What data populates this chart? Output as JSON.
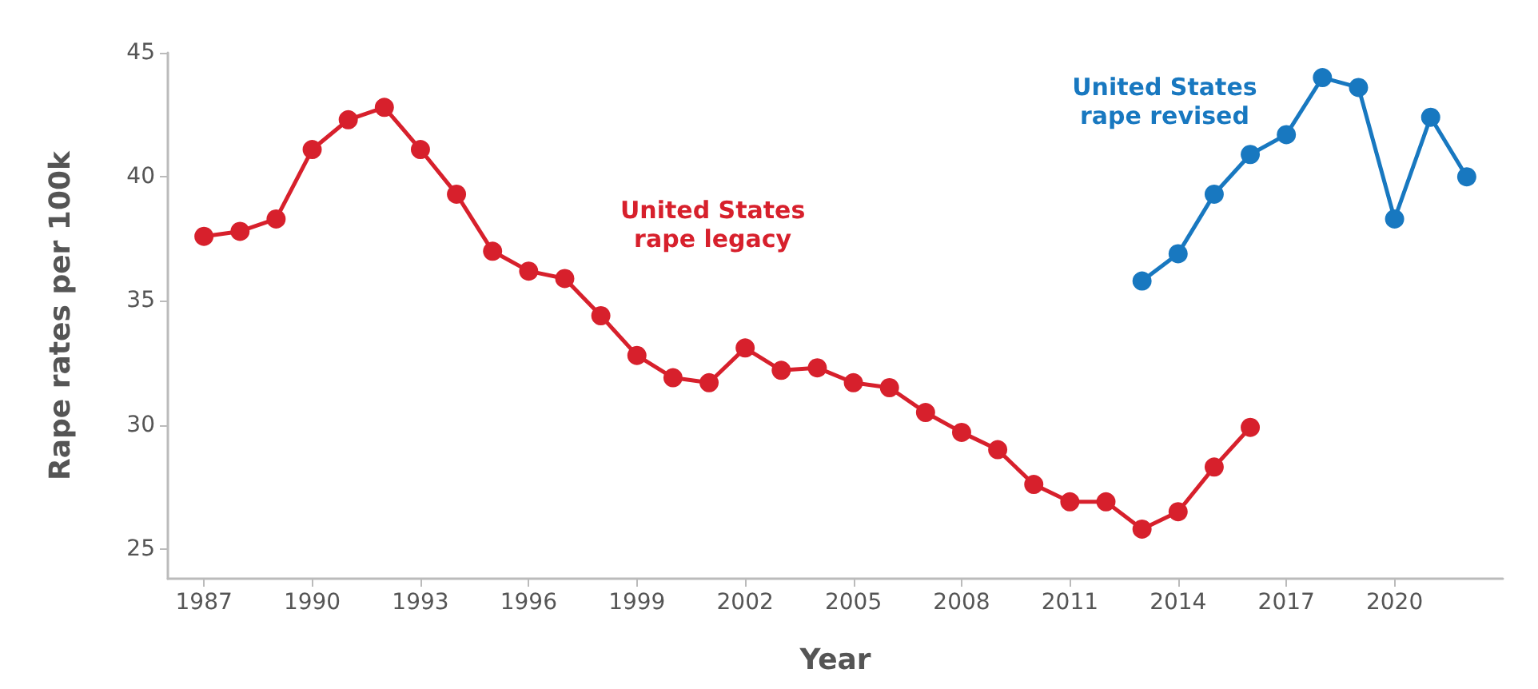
{
  "chart_data": {
    "type": "line",
    "xlabel": "Year",
    "ylabel": "Rape rates per 100k",
    "xlim": [
      1986,
      2023
    ],
    "xticks": [
      1987,
      1990,
      1993,
      1996,
      1999,
      2002,
      2005,
      2008,
      2011,
      2014,
      2017,
      2020
    ],
    "ylim": [
      23.8,
      45
    ],
    "yticks": [
      25,
      30,
      35,
      40,
      45
    ],
    "grid": false,
    "legend": false,
    "marker": "circle",
    "line_style": "solid",
    "series": [
      {
        "name": "United States rape legacy",
        "color": "#d7202c",
        "x": [
          1987,
          1988,
          1989,
          1990,
          1991,
          1992,
          1993,
          1994,
          1995,
          1996,
          1997,
          1998,
          1999,
          2000,
          2001,
          2002,
          2003,
          2004,
          2005,
          2006,
          2007,
          2008,
          2009,
          2010,
          2011,
          2012,
          2013,
          2014,
          2015,
          2016
        ],
        "values": [
          37.6,
          37.8,
          38.3,
          41.1,
          42.3,
          42.8,
          41.1,
          39.3,
          37.0,
          36.2,
          35.9,
          34.4,
          32.8,
          31.9,
          31.7,
          33.1,
          32.2,
          32.3,
          31.7,
          31.5,
          30.5,
          29.7,
          29.0,
          27.6,
          26.9,
          26.9,
          25.8,
          26.5,
          28.3,
          29.9
        ]
      },
      {
        "name": "United States rape revised",
        "color": "#1878c0",
        "x": [
          2013,
          2014,
          2015,
          2016,
          2017,
          2018,
          2019,
          2020,
          2021,
          2022
        ],
        "values": [
          35.8,
          36.9,
          39.3,
          40.9,
          41.7,
          44.0,
          43.6,
          38.3,
          42.4,
          40.0
        ]
      }
    ]
  }
}
